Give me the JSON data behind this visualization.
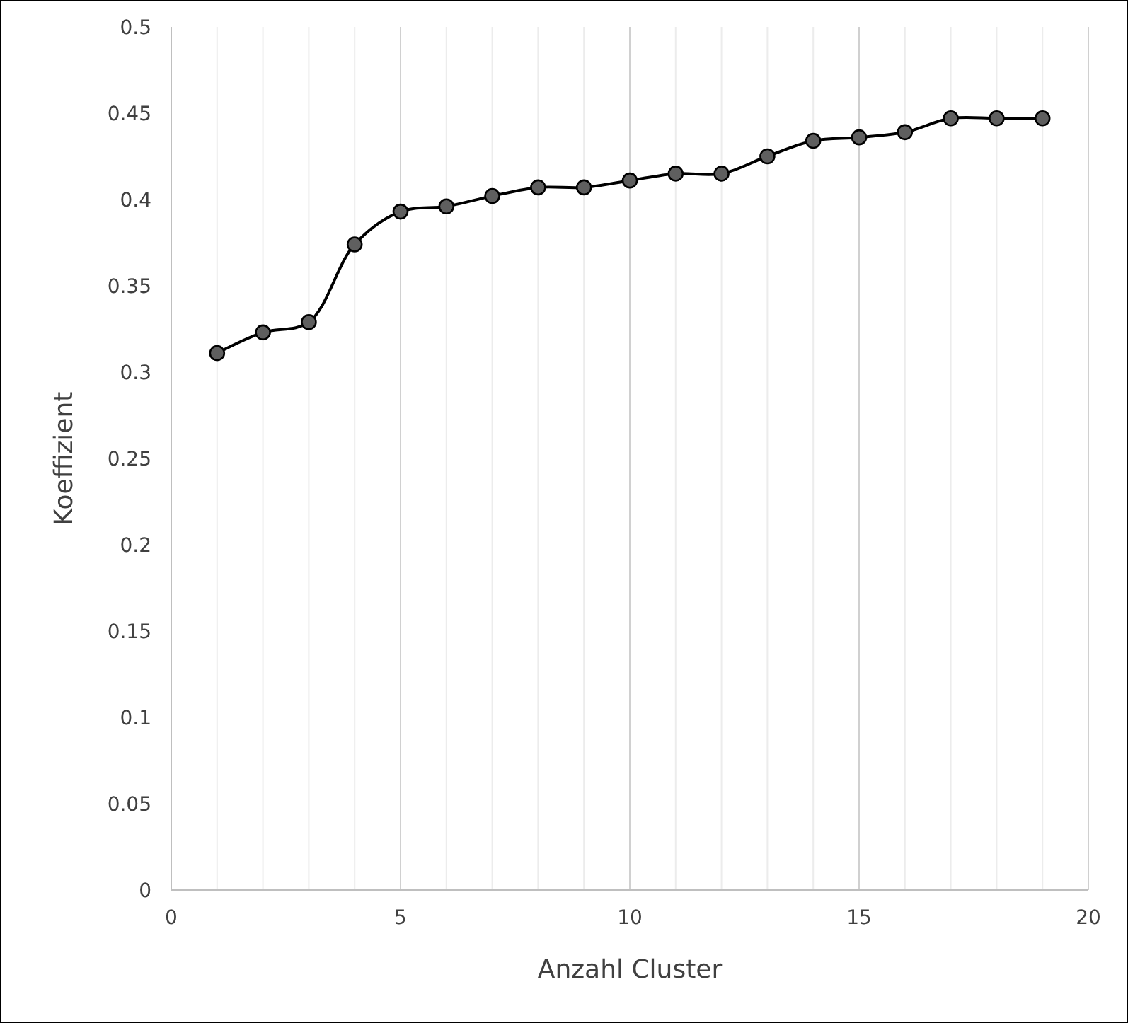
{
  "chart_data": {
    "type": "line",
    "xlabel": "Anzahl Cluster",
    "ylabel": "Koeffizient",
    "x": [
      1,
      2,
      3,
      4,
      5,
      6,
      7,
      8,
      9,
      10,
      11,
      12,
      13,
      14,
      15,
      16,
      17,
      18,
      19
    ],
    "series": [
      {
        "color": "#000000",
        "values": [
          0.311,
          0.323,
          0.329,
          0.374,
          0.393,
          0.396,
          0.402,
          0.407,
          0.407,
          0.411,
          0.415,
          0.415,
          0.425,
          0.434,
          0.436,
          0.439,
          0.447,
          0.447,
          0.447
        ]
      }
    ],
    "xlim": [
      0,
      20
    ],
    "xticks": [
      0,
      5,
      10,
      15,
      20
    ],
    "ylim": [
      0,
      0.5
    ],
    "yticks": [
      0,
      0.05,
      0.1,
      0.15,
      0.2,
      0.25,
      0.3,
      0.35,
      0.4,
      0.45,
      0.5
    ],
    "grid": "x",
    "marker": "circle",
    "line_style": "solid"
  }
}
